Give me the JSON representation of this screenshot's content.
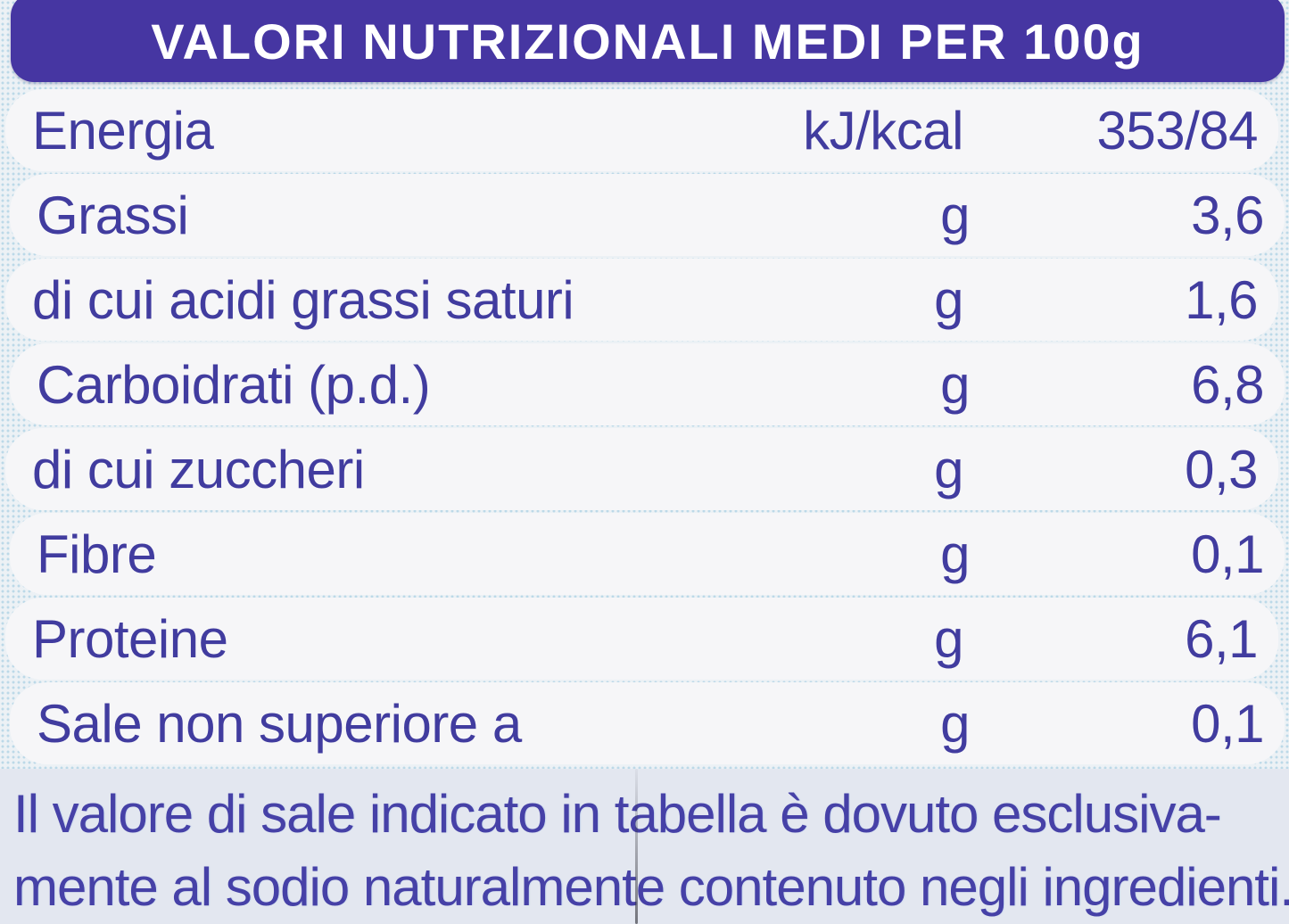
{
  "header": {
    "title": "VALORI NUTRIZIONALI MEDI PER 100g"
  },
  "table": {
    "rows": [
      {
        "label": "Energia",
        "unit": "kJ/kcal",
        "value": "353/84"
      },
      {
        "label": "Grassi",
        "unit": "g",
        "value": "3,6"
      },
      {
        "label": "di cui acidi grassi saturi",
        "unit": "g",
        "value": "1,6"
      },
      {
        "label": "Carboidrati (p.d.)",
        "unit": "g",
        "value": "6,8"
      },
      {
        "label": "di cui zuccheri",
        "unit": "g",
        "value": "0,3"
      },
      {
        "label": "Fibre",
        "unit": "g",
        "value": "0,1"
      },
      {
        "label": "Proteine",
        "unit": "g",
        "value": "6,1"
      },
      {
        "label": "Sale non superiore a",
        "unit": "g",
        "value": "0,1"
      }
    ]
  },
  "footnote": {
    "line1": "Il valore di sale indicato in tabella è dovuto esclusiva-",
    "line2": "mente al sodio naturalmente contenuto negli ingredienti."
  },
  "colors": {
    "banner-bg": "#4636a2",
    "banner-ink": "#ffffff",
    "ink": "#413c9f",
    "footer-ink": "#4641a7",
    "pill-bg": "#f6f6f8",
    "footer-bg": "#e3e7f0",
    "halftone-dot": "#bcd9e8"
  }
}
